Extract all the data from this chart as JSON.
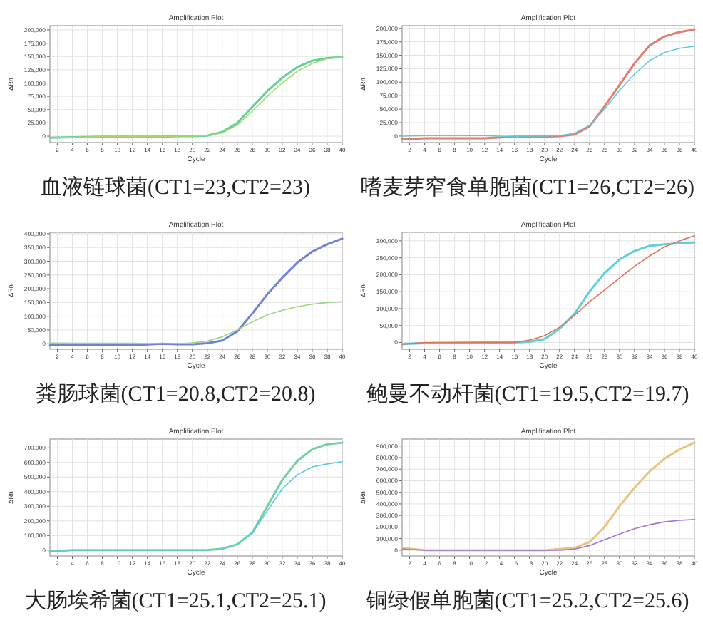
{
  "chart_data": [
    {
      "type": "line",
      "title": "Amplification Plot",
      "xlabel": "Cycle",
      "ylabel": "ΔRn",
      "annotations": [
        "血液链球菌(CT1=23,CT2=23)"
      ],
      "grid": true,
      "marker": "none",
      "line_style": "solid",
      "x": [
        1,
        4,
        8,
        12,
        16,
        18,
        20,
        22,
        24,
        26,
        28,
        30,
        32,
        34,
        36,
        38,
        40
      ],
      "series": [
        {
          "color": "#62cf9a",
          "values": [
            -3000,
            -2000,
            -1000,
            -1000,
            -1000,
            0,
            0,
            1000,
            8000,
            25000,
            55000,
            85000,
            110000,
            130000,
            142000,
            147000,
            149000
          ]
        },
        {
          "color": "#a5d86e",
          "values": [
            -3000,
            -2000,
            -1000,
            -1000,
            -1000,
            0,
            0,
            1000,
            6000,
            21000,
            47000,
            75000,
            100000,
            122000,
            137000,
            146000,
            149000
          ]
        }
      ],
      "xlim": [
        1,
        40
      ],
      "xticks": [
        2,
        4,
        6,
        8,
        10,
        12,
        14,
        16,
        18,
        20,
        22,
        24,
        26,
        28,
        30,
        32,
        34,
        36,
        38,
        40
      ],
      "ylim": [
        -12000,
        208000
      ],
      "yticks": [
        {
          "value": 0,
          "label": "0"
        },
        {
          "value": 25000,
          "label": "25,000"
        },
        {
          "value": 50000,
          "label": "50,000"
        },
        {
          "value": 75000,
          "label": "75,000"
        },
        {
          "value": 100000,
          "label": "100,000"
        },
        {
          "value": 125000,
          "label": "125,000"
        },
        {
          "value": 150000,
          "label": "150,000"
        },
        {
          "value": 175000,
          "label": "175,000"
        },
        {
          "value": 200000,
          "label": "200,000"
        }
      ]
    },
    {
      "type": "line",
      "title": "Amplification Plot",
      "xlabel": "Cycle",
      "ylabel": "ΔRn",
      "annotations": [
        "嗜麦芽窄食单胞菌(CT1=26,CT2=26)"
      ],
      "grid": true,
      "marker": "none",
      "line_style": "solid",
      "x": [
        1,
        4,
        8,
        12,
        16,
        18,
        20,
        22,
        24,
        26,
        28,
        30,
        32,
        34,
        36,
        38,
        40
      ],
      "series": [
        {
          "color": "#e27c6c",
          "values": [
            -6000,
            -4000,
            -4000,
            -4000,
            -1000,
            -1000,
            -1000,
            0,
            3000,
            18000,
            55000,
            95000,
            135000,
            168000,
            185000,
            193000,
            198000
          ]
        },
        {
          "color": "#5fc9dc",
          "values": [
            0,
            1000,
            1000,
            1000,
            -1000,
            0,
            0,
            1000,
            5000,
            20000,
            50000,
            85000,
            115000,
            140000,
            155000,
            163000,
            167000
          ]
        }
      ],
      "xlim": [
        1,
        40
      ],
      "xticks": [
        2,
        4,
        6,
        8,
        10,
        12,
        14,
        16,
        18,
        20,
        22,
        24,
        26,
        28,
        30,
        32,
        34,
        36,
        38,
        40
      ],
      "ylim": [
        -12000,
        205000
      ],
      "yticks": [
        {
          "value": 0,
          "label": "0"
        },
        {
          "value": 25000,
          "label": "25,000"
        },
        {
          "value": 50000,
          "label": "50,000"
        },
        {
          "value": 75000,
          "label": "75,000"
        },
        {
          "value": 100000,
          "label": "100,000"
        },
        {
          "value": 125000,
          "label": "125,000"
        },
        {
          "value": 150000,
          "label": "150,000"
        },
        {
          "value": 175000,
          "label": "175,000"
        },
        {
          "value": 200000,
          "label": "200,000"
        }
      ]
    },
    {
      "type": "line",
      "title": "Amplification Plot",
      "xlabel": "Cycle",
      "ylabel": "ΔRn",
      "annotations": [
        "粪肠球菌(CT1=20.8,CT2=20.8)"
      ],
      "grid": true,
      "marker": "none",
      "line_style": "solid",
      "x": [
        1,
        4,
        8,
        12,
        16,
        18,
        20,
        22,
        24,
        26,
        28,
        30,
        32,
        34,
        36,
        38,
        40
      ],
      "series": [
        {
          "color": "#6f80d8",
          "values": [
            -6000,
            -5000,
            -5000,
            -5000,
            0,
            -2000,
            -2000,
            2000,
            12000,
            45000,
            110000,
            180000,
            240000,
            295000,
            335000,
            362000,
            382000
          ]
        },
        {
          "color": "#9ad67c",
          "values": [
            3000,
            2000,
            2000,
            2000,
            0,
            0,
            3000,
            10000,
            25000,
            50000,
            80000,
            105000,
            122000,
            135000,
            144000,
            150000,
            153000
          ]
        }
      ],
      "xlim": [
        1,
        40
      ],
      "xticks": [
        2,
        4,
        6,
        8,
        10,
        12,
        14,
        16,
        18,
        20,
        22,
        24,
        26,
        28,
        30,
        32,
        34,
        36,
        38,
        40
      ],
      "ylim": [
        -20000,
        405000
      ],
      "yticks": [
        {
          "value": 0,
          "label": "0"
        },
        {
          "value": 50000,
          "label": "50,000"
        },
        {
          "value": 100000,
          "label": "100,000"
        },
        {
          "value": 150000,
          "label": "150,000"
        },
        {
          "value": 200000,
          "label": "200,000"
        },
        {
          "value": 250000,
          "label": "250,000"
        },
        {
          "value": 300000,
          "label": "300,000"
        },
        {
          "value": 350000,
          "label": "350,000"
        },
        {
          "value": 400000,
          "label": "400,000"
        }
      ]
    },
    {
      "type": "line",
      "title": "Amplification Plot",
      "xlabel": "Cycle",
      "ylabel": "ΔRn",
      "annotations": [
        "鲍曼不动杆菌(CT1=19.5,CT2=19.7)"
      ],
      "grid": true,
      "marker": "none",
      "line_style": "solid",
      "x": [
        1,
        4,
        8,
        12,
        16,
        18,
        20,
        22,
        24,
        26,
        28,
        30,
        32,
        34,
        36,
        38,
        40
      ],
      "series": [
        {
          "color": "#5fd0da",
          "values": [
            -5000,
            -2000,
            -1000,
            0,
            0,
            2000,
            10000,
            40000,
            85000,
            150000,
            205000,
            245000,
            270000,
            285000,
            290000,
            293000,
            295000
          ]
        },
        {
          "color": "#e0725c",
          "values": [
            -5000,
            0,
            0,
            0,
            0,
            7000,
            20000,
            45000,
            80000,
            120000,
            155000,
            190000,
            225000,
            255000,
            282000,
            300000,
            315000
          ]
        }
      ],
      "xlim": [
        1,
        40
      ],
      "xticks": [
        2,
        4,
        6,
        8,
        10,
        12,
        14,
        16,
        18,
        20,
        22,
        24,
        26,
        28,
        30,
        32,
        34,
        36,
        38,
        40
      ],
      "ylim": [
        -20000,
        325000
      ],
      "yticks": [
        {
          "value": 0,
          "label": "0"
        },
        {
          "value": 50000,
          "label": "50,000"
        },
        {
          "value": 100000,
          "label": "100,000"
        },
        {
          "value": 150000,
          "label": "150,000"
        },
        {
          "value": 200000,
          "label": "200,000"
        },
        {
          "value": 250000,
          "label": "250,000"
        },
        {
          "value": 300000,
          "label": "300,000"
        }
      ]
    },
    {
      "type": "line",
      "title": "Amplification Plot",
      "xlabel": "Cycle",
      "ylabel": "ΔRn",
      "annotations": [
        "大肠埃希菌(CT1=25.1,CT2=25.1)"
      ],
      "grid": true,
      "marker": "none",
      "line_style": "solid",
      "x": [
        1,
        4,
        8,
        12,
        16,
        18,
        20,
        22,
        24,
        26,
        28,
        30,
        32,
        34,
        36,
        38,
        40
      ],
      "series": [
        {
          "color": "#6fd1a2",
          "values": [
            -10000,
            0,
            0,
            0,
            0,
            0,
            0,
            0,
            10000,
            40000,
            120000,
            300000,
            480000,
            610000,
            690000,
            725000,
            735000
          ]
        },
        {
          "color": "#5fc8e2",
          "values": [
            -10000,
            0,
            0,
            0,
            0,
            0,
            0,
            0,
            10000,
            40000,
            115000,
            270000,
            420000,
            515000,
            570000,
            590000,
            605000
          ]
        }
      ],
      "xlim": [
        1,
        40
      ],
      "xticks": [
        2,
        4,
        6,
        8,
        10,
        12,
        14,
        16,
        18,
        20,
        22,
        24,
        26,
        28,
        30,
        32,
        34,
        36,
        38,
        40
      ],
      "ylim": [
        -40000,
        760000
      ],
      "yticks": [
        {
          "value": 0,
          "label": "0"
        },
        {
          "value": 100000,
          "label": "100,000"
        },
        {
          "value": 200000,
          "label": "200,000"
        },
        {
          "value": 300000,
          "label": "300,000"
        },
        {
          "value": 400000,
          "label": "400,000"
        },
        {
          "value": 500000,
          "label": "500,000"
        },
        {
          "value": 600000,
          "label": "600,000"
        },
        {
          "value": 700000,
          "label": "700,000"
        }
      ]
    },
    {
      "type": "line",
      "title": "Amplification Plot",
      "xlabel": "Cycle",
      "ylabel": "ΔRn",
      "annotations": [
        "铜绿假单胞菌(CT1=25.2,CT2=25.6)"
      ],
      "grid": true,
      "marker": "none",
      "line_style": "solid",
      "x": [
        1,
        4,
        8,
        12,
        16,
        18,
        20,
        22,
        24,
        26,
        28,
        30,
        32,
        34,
        36,
        38,
        40
      ],
      "series": [
        {
          "color": "#e8c47c",
          "values": [
            20000,
            0,
            0,
            0,
            0,
            0,
            0,
            10000,
            20000,
            70000,
            200000,
            380000,
            540000,
            680000,
            790000,
            870000,
            930000
          ]
        },
        {
          "color": "#a274da",
          "values": [
            10000,
            0,
            0,
            0,
            0,
            0,
            0,
            0,
            10000,
            40000,
            90000,
            140000,
            185000,
            220000,
            245000,
            258000,
            265000
          ]
        }
      ],
      "xlim": [
        1,
        40
      ],
      "xticks": [
        2,
        4,
        6,
        8,
        10,
        12,
        14,
        16,
        18,
        20,
        22,
        24,
        26,
        28,
        30,
        32,
        34,
        36,
        38,
        40
      ],
      "ylim": [
        -50000,
        960000
      ],
      "yticks": [
        {
          "value": 0,
          "label": "0"
        },
        {
          "value": 100000,
          "label": "100,000"
        },
        {
          "value": 200000,
          "label": "200,000"
        },
        {
          "value": 300000,
          "label": "300,000"
        },
        {
          "value": 400000,
          "label": "400,000"
        },
        {
          "value": 500000,
          "label": "500,000"
        },
        {
          "value": 600000,
          "label": "600,000"
        },
        {
          "value": 700000,
          "label": "700,000"
        },
        {
          "value": 800000,
          "label": "800,000"
        },
        {
          "value": 900000,
          "label": "900,000"
        }
      ]
    }
  ]
}
